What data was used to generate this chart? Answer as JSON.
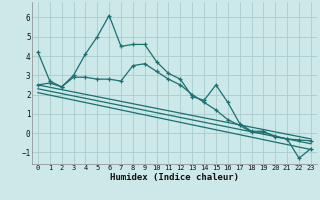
{
  "xlabel": "Humidex (Indice chaleur)",
  "background_color": "#cce8e8",
  "grid_color": "#aacccc",
  "line_color": "#1a7070",
  "xlim": [
    -0.5,
    23.5
  ],
  "ylim": [
    -1.6,
    6.8
  ],
  "yticks": [
    -1,
    0,
    1,
    2,
    3,
    4,
    5,
    6
  ],
  "xticks": [
    0,
    1,
    2,
    3,
    4,
    5,
    6,
    7,
    8,
    9,
    10,
    11,
    12,
    13,
    14,
    15,
    16,
    17,
    18,
    19,
    20,
    21,
    22,
    23
  ],
  "series": [
    {
      "x": [
        0,
        1,
        2,
        3,
        4,
        5,
        6,
        7,
        8,
        9,
        10,
        11,
        12,
        13,
        14,
        15,
        16,
        17,
        18,
        19,
        20,
        21,
        22,
        23
      ],
      "y": [
        4.2,
        2.7,
        2.4,
        3.0,
        4.1,
        5.0,
        6.1,
        4.5,
        4.6,
        4.6,
        3.7,
        3.1,
        2.8,
        1.9,
        1.7,
        2.5,
        1.6,
        0.5,
        0.1,
        0.1,
        -0.2,
        -0.3,
        -1.3,
        -0.8
      ]
    },
    {
      "x": [
        0,
        1,
        2,
        3,
        4,
        5,
        6,
        7,
        8,
        9,
        10,
        11,
        12,
        13,
        14,
        15,
        16,
        17,
        18,
        19,
        20,
        21,
        22,
        23
      ],
      "y": [
        2.5,
        2.6,
        2.4,
        2.9,
        2.9,
        2.8,
        2.8,
        2.7,
        3.5,
        3.6,
        3.2,
        2.8,
        2.5,
        2.0,
        1.6,
        1.2,
        0.7,
        0.4,
        0.05,
        0.05,
        -0.15,
        -0.3,
        -0.35,
        -0.4
      ]
    },
    {
      "x": [
        0,
        23
      ],
      "y": [
        2.5,
        -0.3
      ]
    },
    {
      "x": [
        0,
        23
      ],
      "y": [
        2.3,
        -0.55
      ]
    },
    {
      "x": [
        0,
        23
      ],
      "y": [
        2.1,
        -0.85
      ]
    }
  ]
}
